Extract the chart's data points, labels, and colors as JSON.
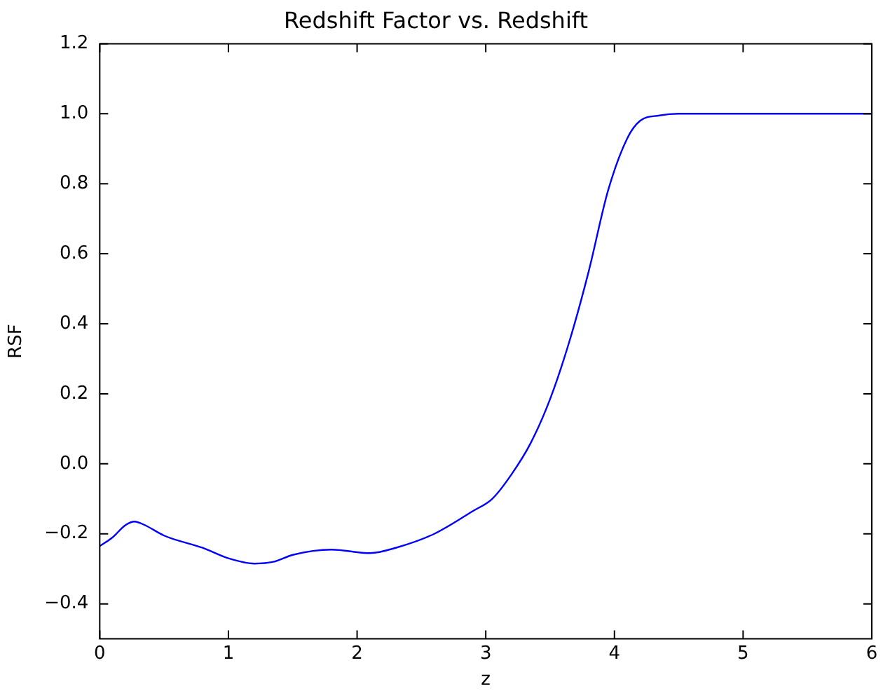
{
  "chart_data": {
    "type": "line",
    "title": "Redshift Factor vs. Redshift",
    "xlabel": "z",
    "ylabel": "RSF",
    "x": [
      0,
      0.1,
      0.2,
      0.27,
      0.35,
      0.5,
      0.8,
      1.0,
      1.2,
      1.35,
      1.5,
      1.8,
      2.1,
      2.3,
      2.6,
      2.9,
      3.05,
      3.2,
      3.35,
      3.5,
      3.65,
      3.8,
      3.95,
      4.1,
      4.2,
      4.35,
      4.5,
      5,
      6
    ],
    "series": [
      {
        "color": "#0000ff",
        "values": [
          -0.235,
          -0.21,
          -0.175,
          -0.165,
          -0.175,
          -0.205,
          -0.24,
          -0.27,
          -0.285,
          -0.28,
          -0.26,
          -0.245,
          -0.255,
          -0.24,
          -0.2,
          -0.135,
          -0.1,
          -0.03,
          0.06,
          0.185,
          0.35,
          0.55,
          0.78,
          0.93,
          0.98,
          0.995,
          1.0,
          1.0,
          1.0
        ]
      }
    ],
    "xlim": [
      0,
      6
    ],
    "xticks": [
      0,
      1,
      2,
      3,
      4,
      5,
      6
    ],
    "ylim": [
      -0.5,
      1.2
    ],
    "yticks": [
      {
        "value": -0.4,
        "label": "−0.4"
      },
      {
        "value": -0.2,
        "label": "−0.2"
      },
      {
        "value": 0,
        "label": "0.0"
      },
      {
        "value": 0.2,
        "label": "0.2"
      },
      {
        "value": 0.4,
        "label": "0.4"
      },
      {
        "value": 0.6,
        "label": "0.6"
      },
      {
        "value": 0.8,
        "label": "0.8"
      },
      {
        "value": 1.0,
        "label": "1.0"
      },
      {
        "value": 1.2,
        "label": "1.2"
      }
    ],
    "grid": false,
    "legend": false,
    "marker": "none",
    "line_style": "solid"
  }
}
